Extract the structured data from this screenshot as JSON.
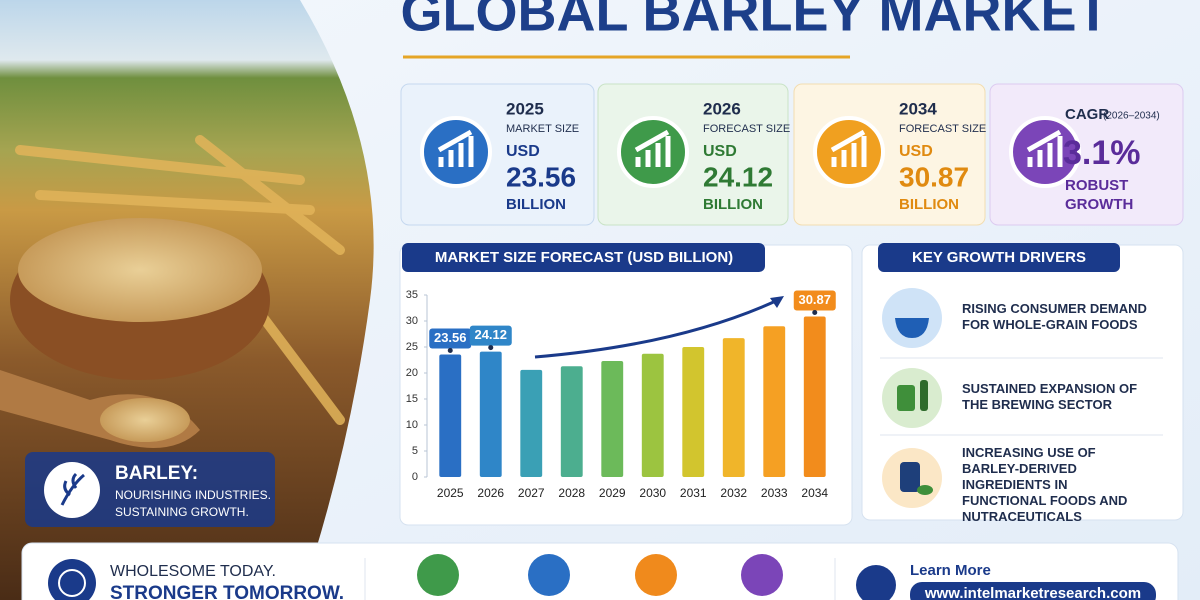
{
  "header": {
    "title": "GLOBAL BARLEY MARKET"
  },
  "stats": [
    {
      "year": "2025",
      "label": "MARKET SIZE",
      "currency": "USD",
      "value": "23.56",
      "unit": "BILLION"
    },
    {
      "year": "2026",
      "label": "FORECAST SIZE",
      "currency": "USD",
      "value": "24.12",
      "unit": "BILLION"
    },
    {
      "year": "2034",
      "label": "FORECAST SIZE",
      "currency": "USD",
      "value": "30.87",
      "unit": "BILLION"
    },
    {
      "year": "CAGR",
      "period": "(2026–2034)",
      "value": "3.1%",
      "note": "ROBUST GROWTH"
    }
  ],
  "chart_data": {
    "type": "bar",
    "title": "MARKET SIZE FORECAST (USD BILLION)",
    "categories": [
      "2025",
      "2026",
      "2027",
      "2028",
      "2029",
      "2030",
      "2031",
      "2032",
      "2033",
      "2034"
    ],
    "values": [
      23.56,
      24.12,
      20.6,
      21.3,
      22.3,
      23.7,
      25,
      26.7,
      29,
      30.87
    ],
    "value_labels": [
      "23.56",
      "24.12",
      null,
      null,
      null,
      null,
      null,
      null,
      null,
      "30.87"
    ],
    "colors": [
      "#2a6fc4",
      "#2f86c8",
      "#3aa0b5",
      "#4cae8f",
      "#6cba5a",
      "#9cc440",
      "#d2c52e",
      "#f0b52a",
      "#f5a023",
      "#f28c1c"
    ],
    "ylim": [
      0,
      35
    ],
    "yticks": [
      0,
      5,
      10,
      15,
      20,
      25,
      30,
      35
    ]
  },
  "drivers": {
    "title": "KEY GROWTH DRIVERS",
    "items": [
      "RISING CONSUMER DEMAND FOR WHOLE-GRAIN FOODS",
      "SUSTAINED EXPANSION OF THE BREWING SECTOR",
      "INCREASING USE OF BARLEY-DERIVED INGREDIENTS IN FUNCTIONAL FOODS AND NUTRACEUTICALS"
    ]
  },
  "badge": {
    "title": "BARLEY:",
    "line1": "NOURISHING INDUSTRIES.",
    "line2": "SUSTAINING GROWTH."
  },
  "footer": {
    "line1": "WHOLESOME TODAY.",
    "line2": "STRONGER TOMORROW.",
    "cta": "Learn More",
    "url": "www.intelmarketresearch.com"
  }
}
